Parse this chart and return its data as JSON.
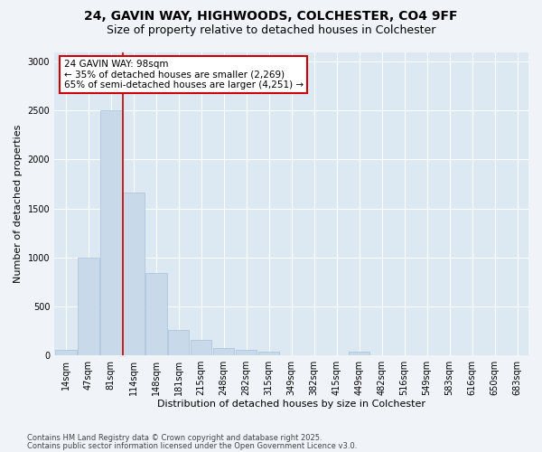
{
  "title1": "24, GAVIN WAY, HIGHWOODS, COLCHESTER, CO4 9FF",
  "title2": "Size of property relative to detached houses in Colchester",
  "xlabel": "Distribution of detached houses by size in Colchester",
  "ylabel": "Number of detached properties",
  "bar_color": "#c8daea",
  "bar_edge_color": "#a8c0d8",
  "plot_bg_color": "#dce8f2",
  "fig_bg_color": "#f0f4f8",
  "grid_color": "#ffffff",
  "categories": [
    "14sqm",
    "47sqm",
    "81sqm",
    "114sqm",
    "148sqm",
    "181sqm",
    "215sqm",
    "248sqm",
    "282sqm",
    "315sqm",
    "349sqm",
    "382sqm",
    "415sqm",
    "449sqm",
    "482sqm",
    "516sqm",
    "549sqm",
    "583sqm",
    "616sqm",
    "650sqm",
    "683sqm"
  ],
  "values": [
    55,
    1000,
    2500,
    1660,
    840,
    260,
    155,
    70,
    55,
    35,
    0,
    0,
    0,
    30,
    0,
    0,
    0,
    0,
    0,
    0,
    0
  ],
  "ylim": [
    0,
    3100
  ],
  "yticks": [
    0,
    500,
    1000,
    1500,
    2000,
    2500,
    3000
  ],
  "property_line_x": 2.52,
  "annotation_line1": "24 GAVIN WAY: 98sqm",
  "annotation_line2": "← 35% of detached houses are smaller (2,269)",
  "annotation_line3": "65% of semi-detached houses are larger (4,251) →",
  "ann_fc": "#ffffff",
  "ann_ec": "#cc0000",
  "vline_color": "#cc0000",
  "footnote1": "Contains HM Land Registry data © Crown copyright and database right 2025.",
  "footnote2": "Contains public sector information licensed under the Open Government Licence v3.0.",
  "fs_title1": 10,
  "fs_title2": 9,
  "fs_xlabel": 8,
  "fs_ylabel": 8,
  "fs_tick": 7,
  "fs_ann": 7.5,
  "fs_foot": 6
}
